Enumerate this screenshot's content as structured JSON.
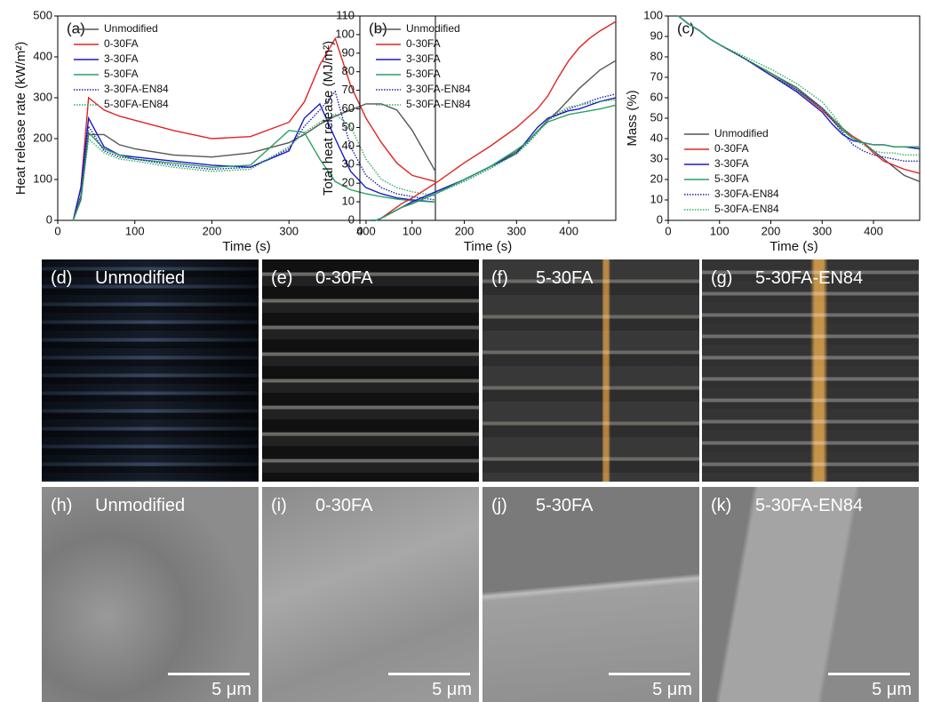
{
  "chart_data": [
    {
      "type": "line",
      "label": "(a)",
      "x_label": "Time (s)",
      "y_label": "Heat release rate (kW/m²)",
      "x": [
        20,
        30,
        40,
        60,
        80,
        100,
        150,
        200,
        250,
        300,
        320,
        340,
        360,
        380,
        400,
        420,
        440,
        460,
        490
      ],
      "xlim": [
        0,
        490
      ],
      "xticks": [
        0,
        100,
        200,
        300,
        400
      ],
      "ylim": [
        0,
        500
      ],
      "yticks": [
        0,
        100,
        200,
        300,
        400,
        500
      ],
      "legend": "upper left",
      "series": [
        {
          "name": "Unmodified",
          "color": "#555555",
          "linestyle": "solid",
          "values": [
            0,
            50,
            210,
            210,
            185,
            175,
            160,
            155,
            165,
            190,
            210,
            235,
            255,
            270,
            285,
            285,
            270,
            220,
            120
          ]
        },
        {
          "name": "0-30FA",
          "color": "#e02424",
          "linestyle": "solid",
          "values": [
            0,
            80,
            300,
            270,
            255,
            245,
            220,
            200,
            205,
            240,
            290,
            380,
            445,
            330,
            250,
            190,
            140,
            110,
            95
          ]
        },
        {
          "name": "3-30FA",
          "color": "#1a1ac8",
          "linestyle": "solid",
          "values": [
            0,
            80,
            250,
            180,
            160,
            155,
            145,
            135,
            130,
            170,
            250,
            285,
            200,
            120,
            80,
            65,
            55,
            50,
            45
          ]
        },
        {
          "name": "5-30FA",
          "color": "#2ca060",
          "linestyle": "solid",
          "values": [
            0,
            60,
            215,
            175,
            160,
            150,
            140,
            130,
            135,
            220,
            215,
            150,
            95,
            75,
            65,
            58,
            52,
            48,
            45
          ]
        },
        {
          "name": "3-30FA-EN84",
          "color": "#2020a0",
          "linestyle": "dotted",
          "values": [
            0,
            60,
            230,
            170,
            155,
            150,
            135,
            125,
            130,
            175,
            230,
            270,
            315,
            180,
            110,
            80,
            65,
            58,
            50
          ]
        },
        {
          "name": "5-30FA-EN84",
          "color": "#30b060",
          "linestyle": "dotted",
          "values": [
            0,
            50,
            200,
            165,
            150,
            145,
            130,
            120,
            125,
            180,
            215,
            240,
            260,
            230,
            150,
            100,
            80,
            70,
            60
          ]
        }
      ]
    },
    {
      "type": "line",
      "label": "(b)",
      "x_label": "Time (s)",
      "y_label": "Total heat release (MJ/m²)",
      "x": [
        20,
        30,
        40,
        60,
        80,
        100,
        150,
        200,
        250,
        300,
        320,
        340,
        360,
        380,
        400,
        420,
        440,
        460,
        490
      ],
      "xlim": [
        0,
        490
      ],
      "xticks": [
        0,
        100,
        200,
        300,
        400
      ],
      "ylim": [
        0,
        110
      ],
      "yticks": [
        0,
        10,
        20,
        30,
        40,
        50,
        60,
        70,
        80,
        90,
        100,
        110
      ],
      "legend": "upper left",
      "series": [
        {
          "name": "Unmodified",
          "color": "#555555",
          "linestyle": "solid",
          "values": [
            0,
            0,
            1,
            4,
            7,
            9,
            15,
            22,
            29,
            37,
            42,
            48,
            54,
            59,
            65,
            71,
            76,
            81,
            86
          ]
        },
        {
          "name": "0-30FA",
          "color": "#e02424",
          "linestyle": "solid",
          "values": [
            0,
            0,
            1,
            5,
            9,
            12,
            21,
            31,
            40,
            50,
            55,
            60,
            67,
            77,
            86,
            93,
            98,
            102,
            107
          ]
        },
        {
          "name": "3-30FA",
          "color": "#1a1ac8",
          "linestyle": "solid",
          "values": [
            0,
            0,
            1,
            4,
            7,
            10,
            16,
            22,
            29,
            36,
            43,
            50,
            55,
            57,
            59,
            60,
            62,
            64,
            66
          ]
        },
        {
          "name": "5-30FA",
          "color": "#2ca060",
          "linestyle": "solid",
          "values": [
            0,
            0,
            1,
            4,
            7,
            9,
            15,
            22,
            29,
            38,
            42,
            48,
            53,
            55,
            57,
            58,
            59,
            60,
            62
          ]
        },
        {
          "name": "3-30FA-EN84",
          "color": "#2020a0",
          "linestyle": "dotted",
          "values": [
            0,
            0,
            1,
            4,
            7,
            9,
            15,
            21,
            28,
            36,
            41,
            47,
            54,
            57,
            60,
            62,
            64,
            66,
            68
          ]
        },
        {
          "name": "5-30FA-EN84",
          "color": "#30b060",
          "linestyle": "dotted",
          "values": [
            0,
            0,
            1,
            4,
            7,
            9,
            15,
            21,
            28,
            36,
            41,
            47,
            54,
            58,
            61,
            62,
            63,
            64,
            65
          ]
        }
      ]
    },
    {
      "type": "line",
      "label": "(c)",
      "x_label": "Time (s)",
      "y_label": "Mass (%)",
      "x": [
        20,
        30,
        40,
        60,
        80,
        100,
        150,
        200,
        250,
        300,
        320,
        340,
        360,
        380,
        400,
        420,
        440,
        460,
        490
      ],
      "xlim": [
        0,
        490
      ],
      "xticks": [
        0,
        100,
        200,
        300,
        400
      ],
      "ylim": [
        0,
        100
      ],
      "yticks": [
        0,
        10,
        20,
        30,
        40,
        50,
        60,
        70,
        80,
        90,
        100
      ],
      "legend": "lower left",
      "series": [
        {
          "name": "Unmodified",
          "color": "#555555",
          "linestyle": "solid",
          "values": [
            100,
            98,
            96,
            93,
            89,
            86,
            79,
            72,
            65,
            55,
            50,
            45,
            41,
            38,
            34,
            30,
            26,
            22,
            19
          ]
        },
        {
          "name": "0-30FA",
          "color": "#e02424",
          "linestyle": "solid",
          "values": [
            100,
            98,
            96,
            93,
            89,
            86,
            79,
            72,
            64,
            54,
            49,
            44,
            41,
            38,
            33,
            29,
            27,
            25,
            23
          ]
        },
        {
          "name": "3-30FA",
          "color": "#1a1ac8",
          "linestyle": "solid",
          "values": [
            100,
            98,
            96,
            93,
            89,
            86,
            79,
            71,
            63,
            53,
            47,
            42,
            39,
            38,
            37,
            37,
            36,
            36,
            35
          ]
        },
        {
          "name": "5-30FA",
          "color": "#2ca060",
          "linestyle": "solid",
          "values": [
            100,
            98,
            96,
            93,
            89,
            86,
            79,
            72,
            64,
            55,
            50,
            44,
            40,
            38,
            37,
            37,
            36,
            36,
            36
          ]
        },
        {
          "name": "3-30FA-EN84",
          "color": "#2020a0",
          "linestyle": "dotted",
          "values": [
            100,
            98,
            96,
            93,
            89,
            86,
            79,
            71,
            64,
            55,
            49,
            43,
            37,
            34,
            32,
            31,
            30,
            29,
            29
          ]
        },
        {
          "name": "5-30FA-EN84",
          "color": "#30b060",
          "linestyle": "dotted",
          "values": [
            100,
            98,
            96,
            93,
            89,
            86,
            80,
            74,
            67,
            58,
            52,
            45,
            40,
            37,
            34,
            33,
            33,
            32,
            32
          ]
        }
      ]
    }
  ],
  "photos": [
    {
      "label": "(d)",
      "caption": "Unmodified"
    },
    {
      "label": "(e)",
      "caption": "0-30FA"
    },
    {
      "label": "(f)",
      "caption": "5-30FA"
    },
    {
      "label": "(g)",
      "caption": "5-30FA-EN84"
    }
  ],
  "sem": [
    {
      "label": "(h)",
      "caption": "Unmodified",
      "scale_bar": "5 μm"
    },
    {
      "label": "(i)",
      "caption": "0-30FA",
      "scale_bar": "5 μm"
    },
    {
      "label": "(j)",
      "caption": "5-30FA",
      "scale_bar": "5 μm"
    },
    {
      "label": "(k)",
      "caption": "5-30FA-EN84",
      "scale_bar": "5 μm"
    }
  ]
}
